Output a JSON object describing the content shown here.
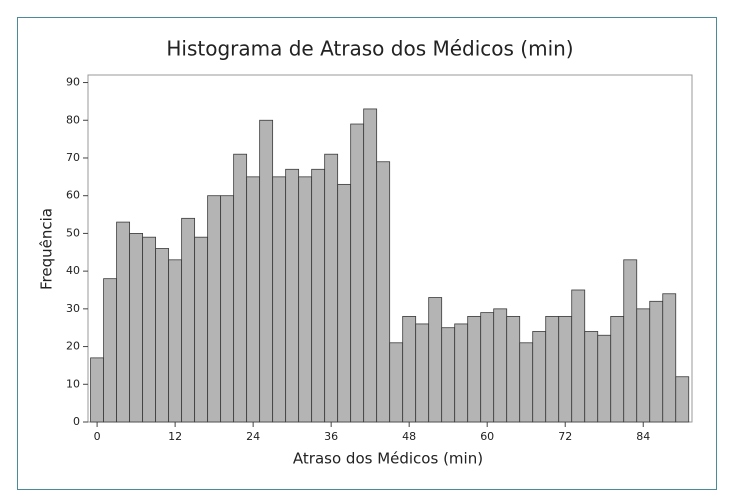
{
  "chart_data": {
    "type": "histogram",
    "title": "Histograma de Atraso dos Médicos (min)",
    "x_label": "Atraso dos Médicos (min)",
    "y_label": "Frequência",
    "bins": [
      -1,
      1,
      3,
      5,
      7,
      9,
      11,
      13,
      15,
      17,
      19,
      21,
      23,
      25,
      27,
      29,
      31,
      33,
      35,
      37,
      39,
      41,
      43,
      45,
      47,
      49,
      51,
      53,
      55,
      57,
      59,
      61,
      63,
      65,
      67,
      69,
      71,
      73,
      75,
      77,
      79,
      81,
      83,
      85,
      87,
      89,
      91
    ],
    "values": [
      17,
      38,
      53,
      50,
      49,
      46,
      43,
      54,
      49,
      60,
      60,
      71,
      65,
      80,
      65,
      67,
      65,
      67,
      71,
      63,
      79,
      83,
      69,
      21,
      28,
      26,
      33,
      25,
      26,
      28,
      29,
      30,
      28,
      21,
      24,
      28,
      28,
      35,
      24,
      23,
      28,
      43,
      30,
      32,
      34,
      12
    ],
    "color": "#b4b4b4",
    "xlim": [
      -1.4,
      91.5
    ],
    "xticks": [
      0,
      12,
      24,
      36,
      48,
      60,
      72,
      84
    ],
    "ylim": [
      0,
      92
    ],
    "yticks": [
      0,
      10,
      20,
      30,
      40,
      50,
      60,
      70,
      80,
      90
    ]
  }
}
